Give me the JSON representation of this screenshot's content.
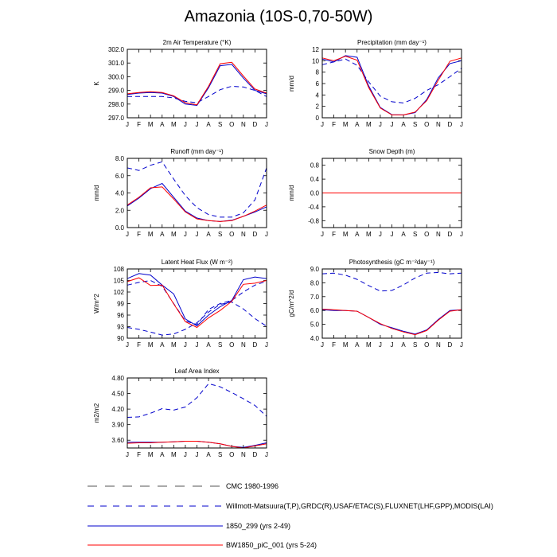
{
  "page": {
    "title": "Amazonia (10S-0,70-50W)"
  },
  "legend": {
    "items": [
      {
        "label": "CMC 1980-1996",
        "color": "#555555",
        "dash": "long"
      },
      {
        "label": "Willmott-Matsuura(T,P),GRDC(R),USAF/ETAC(S),FLUXNET(LHF,GPP),MODIS(LAI)",
        "color": "#0000cc",
        "dash": "medium"
      },
      {
        "label": "1850_299 (yrs 2-49)",
        "color": "#0000cc",
        "dash": "solid"
      },
      {
        "label": "BW1850_piC_001 (yrs 5-24)",
        "color": "#ff0000",
        "dash": "solid"
      }
    ]
  },
  "chart_data": [
    {
      "type": "line",
      "title": "2m Air Temperature (°K)",
      "ylabel": "K",
      "categories": [
        "J",
        "F",
        "M",
        "A",
        "M",
        "J",
        "J",
        "A",
        "S",
        "O",
        "N",
        "D",
        "J"
      ],
      "ylim": [
        297.0,
        302.0
      ],
      "yticks": [
        "297.0",
        "298.0",
        "299.0",
        "300.0",
        "301.0",
        "302.0"
      ],
      "series": [
        {
          "name": "Willmott-Matsuura(T,P),GRDC(R),USAF/ETAC(S),FLUXNET(LHF,GPP),MODIS(LAI)",
          "color": "#0000cc",
          "dash": "dashed",
          "values": [
            298.55,
            298.55,
            298.55,
            298.55,
            298.45,
            298.2,
            298.1,
            298.55,
            299.05,
            299.3,
            299.25,
            299.0,
            298.55
          ]
        },
        {
          "name": "1850_299 (yrs 2-49)",
          "color": "#0000cc",
          "dash": "solid",
          "values": [
            298.7,
            298.8,
            298.85,
            298.8,
            298.55,
            298.0,
            297.9,
            299.2,
            300.8,
            300.9,
            299.9,
            299.0,
            298.75
          ]
        },
        {
          "name": "BW1850_piC_001 (yrs 5-24)",
          "color": "#ff0000",
          "dash": "solid",
          "values": [
            298.75,
            298.85,
            298.9,
            298.85,
            298.6,
            298.1,
            297.95,
            299.3,
            300.95,
            301.05,
            300.05,
            299.1,
            298.8
          ]
        }
      ]
    },
    {
      "type": "line",
      "title": "Precipitation (mm day⁻¹)",
      "ylabel": "mm/d",
      "categories": [
        "J",
        "F",
        "M",
        "A",
        "M",
        "J",
        "J",
        "A",
        "S",
        "O",
        "N",
        "D",
        "J"
      ],
      "ylim": [
        0,
        12
      ],
      "yticks": [
        "0",
        "2",
        "4",
        "6",
        "8",
        "10",
        "12"
      ],
      "series": [
        {
          "name": "Willmott-Matsuura(T,P),GRDC(R),USAF/ETAC(S),FLUXNET(LHF,GPP),MODIS(LAI)",
          "color": "#0000cc",
          "dash": "dashed",
          "values": [
            9.3,
            9.8,
            10.3,
            9.2,
            6.3,
            3.8,
            2.8,
            2.6,
            3.4,
            4.8,
            5.8,
            7.2,
            8.7
          ]
        },
        {
          "name": "1850_299 (yrs 2-49)",
          "color": "#0000cc",
          "dash": "solid",
          "values": [
            10.3,
            9.8,
            10.9,
            10.6,
            5.6,
            1.8,
            0.55,
            0.5,
            0.9,
            3.2,
            7.0,
            9.5,
            10.0
          ]
        },
        {
          "name": "BW1850_piC_001 (yrs 5-24)",
          "color": "#ff0000",
          "dash": "solid",
          "values": [
            10.5,
            10.0,
            10.8,
            10.1,
            5.3,
            1.7,
            0.5,
            0.5,
            1.0,
            3.0,
            6.6,
            9.9,
            10.5
          ]
        }
      ]
    },
    {
      "type": "line",
      "title": "Runoff (mm day⁻¹)",
      "ylabel": "mm/d",
      "categories": [
        "J",
        "F",
        "M",
        "A",
        "M",
        "J",
        "J",
        "A",
        "S",
        "O",
        "N",
        "D",
        "J"
      ],
      "ylim": [
        0.0,
        8.0
      ],
      "yticks": [
        "0.0",
        "2.0",
        "4.0",
        "6.0",
        "8.0"
      ],
      "series": [
        {
          "name": "Willmott-Matsuura(T,P),GRDC(R),USAF/ETAC(S),FLUXNET(LHF,GPP),MODIS(LAI)",
          "color": "#0000cc",
          "dash": "dashed",
          "values": [
            6.9,
            6.6,
            7.2,
            7.6,
            5.6,
            3.7,
            2.3,
            1.5,
            1.2,
            1.2,
            1.7,
            3.2,
            6.9
          ]
        },
        {
          "name": "1850_299 (yrs 2-49)",
          "color": "#0000cc",
          "dash": "solid",
          "values": [
            2.5,
            3.4,
            4.5,
            5.1,
            3.5,
            1.9,
            1.1,
            0.8,
            0.7,
            0.85,
            1.3,
            1.8,
            2.4
          ]
        },
        {
          "name": "BW1850_piC_001 (yrs 5-24)",
          "color": "#ff0000",
          "dash": "solid",
          "values": [
            2.6,
            3.5,
            4.6,
            4.7,
            3.3,
            1.8,
            1.0,
            0.8,
            0.7,
            0.8,
            1.3,
            1.9,
            2.6
          ]
        }
      ]
    },
    {
      "type": "line",
      "title": "Snow Depth (m)",
      "ylabel": "mm/d",
      "categories": [
        "J",
        "F",
        "M",
        "A",
        "M",
        "J",
        "J",
        "A",
        "S",
        "O",
        "N",
        "D",
        "J"
      ],
      "ylim": [
        -1.0,
        1.0
      ],
      "yticks": [
        "-0.8",
        "-0.4",
        "0.0",
        "0.4",
        "0.8"
      ],
      "ytick_values": [
        -0.8,
        -0.4,
        0.0,
        0.4,
        0.8
      ],
      "series": [
        {
          "name": "Willmott-Matsuura(T,P),GRDC(R),USAF/ETAC(S),FLUXNET(LHF,GPP),MODIS(LAI)",
          "color": "#0000cc",
          "dash": "dashed",
          "values": [
            0,
            0,
            0,
            0,
            0,
            0,
            0,
            0,
            0,
            0,
            0,
            0,
            0
          ]
        },
        {
          "name": "1850_299 (yrs 2-49)",
          "color": "#0000cc",
          "dash": "solid",
          "values": [
            0,
            0,
            0,
            0,
            0,
            0,
            0,
            0,
            0,
            0,
            0,
            0,
            0
          ]
        },
        {
          "name": "BW1850_piC_001 (yrs 5-24)",
          "color": "#ff0000",
          "dash": "solid",
          "values": [
            0,
            0,
            0,
            0,
            0,
            0,
            0,
            0,
            0,
            0,
            0,
            0,
            0
          ]
        }
      ]
    },
    {
      "type": "line",
      "title": "Latent Heat Flux (W m⁻²)",
      "ylabel": "W/m^2",
      "categories": [
        "J",
        "F",
        "M",
        "A",
        "M",
        "J",
        "J",
        "A",
        "S",
        "O",
        "N",
        "D",
        "J"
      ],
      "ylim": [
        90,
        108
      ],
      "yticks": [
        "90",
        "93",
        "96",
        "99",
        "102",
        "105",
        "108"
      ],
      "series": [
        {
          "name": "CMC 1980-1996",
          "color": "#0000cc",
          "dash": "dashed",
          "values": [
            103.8,
            104.5,
            105.0,
            103.5,
            99.0,
            94.5,
            93.5,
            97.5,
            99.0,
            99.8,
            102.0,
            103.8,
            104.8
          ]
        },
        {
          "name": "Willmott-Matsuura(T,P),GRDC(R),USAF/ETAC(S),FLUXNET(LHF,GPP),MODIS(LAI)",
          "color": "#0000cc",
          "dash": "dashed",
          "values": [
            92.8,
            92.3,
            91.6,
            90.8,
            91.1,
            92.3,
            94.0,
            96.8,
            98.8,
            99.4,
            97.6,
            95.1,
            93.1
          ]
        },
        {
          "name": "1850_299 (yrs 2-49)",
          "color": "#0000cc",
          "dash": "solid",
          "values": [
            105.5,
            106.8,
            106.4,
            103.8,
            101.5,
            95.0,
            93.2,
            96.0,
            98.2,
            99.8,
            105.2,
            105.9,
            105.5
          ]
        },
        {
          "name": "BW1850_piC_001 (yrs 5-24)",
          "color": "#ff0000",
          "dash": "solid",
          "values": [
            104.7,
            105.7,
            103.7,
            103.8,
            98.9,
            94.3,
            92.8,
            95.3,
            97.2,
            99.6,
            104.0,
            104.3,
            105.0
          ]
        }
      ]
    },
    {
      "type": "line",
      "title": "Photosynthesis (gC m⁻²day⁻¹)",
      "ylabel": "gC/m^2/d",
      "categories": [
        "J",
        "F",
        "M",
        "A",
        "M",
        "J",
        "J",
        "A",
        "S",
        "O",
        "N",
        "D",
        "J"
      ],
      "ylim": [
        4.0,
        9.0
      ],
      "yticks": [
        "4.0",
        "5.0",
        "6.0",
        "7.0",
        "8.0",
        "9.0"
      ],
      "series": [
        {
          "name": "Willmott-Matsuura(T,P),GRDC(R),USAF/ETAC(S),FLUXNET(LHF,GPP),MODIS(LAI)",
          "color": "#0000cc",
          "dash": "dashed",
          "values": [
            8.65,
            8.7,
            8.55,
            8.25,
            7.8,
            7.4,
            7.45,
            7.85,
            8.35,
            8.7,
            8.75,
            8.65,
            8.7
          ]
        },
        {
          "name": "1850_299 (yrs 2-49)",
          "color": "#0000cc",
          "dash": "solid",
          "values": [
            6.05,
            6.0,
            6.0,
            5.95,
            5.5,
            5.0,
            4.75,
            4.5,
            4.3,
            4.6,
            5.35,
            6.0,
            6.05
          ]
        },
        {
          "name": "BW1850_piC_001 (yrs 5-24)",
          "color": "#ff0000",
          "dash": "solid",
          "values": [
            6.1,
            6.05,
            6.0,
            5.95,
            5.5,
            5.05,
            4.7,
            4.45,
            4.25,
            4.55,
            5.3,
            5.95,
            6.05
          ]
        }
      ]
    },
    {
      "type": "line",
      "title": "Leaf Area Index",
      "ylabel": "m2/m2",
      "categories": [
        "J",
        "F",
        "M",
        "A",
        "M",
        "J",
        "J",
        "A",
        "S",
        "O",
        "N",
        "D",
        "J"
      ],
      "ylim": [
        3.45,
        4.8
      ],
      "yticks": [
        "3.60",
        "3.90",
        "4.20",
        "4.50",
        "4.80"
      ],
      "ytick_values": [
        3.6,
        3.9,
        4.2,
        4.5,
        4.8
      ],
      "series": [
        {
          "name": "Willmott-Matsuura(T,P),GRDC(R),USAF/ETAC(S),FLUXNET(LHF,GPP),MODIS(LAI)",
          "color": "#0000cc",
          "dash": "dashed",
          "values": [
            4.04,
            4.05,
            4.12,
            4.21,
            4.18,
            4.24,
            4.42,
            4.69,
            4.63,
            4.52,
            4.4,
            4.27,
            4.06
          ]
        },
        {
          "name": "1850_299 (yrs 2-49)",
          "color": "#0000cc",
          "dash": "solid",
          "values": [
            3.56,
            3.56,
            3.56,
            3.56,
            3.57,
            3.58,
            3.58,
            3.56,
            3.53,
            3.48,
            3.46,
            3.5,
            3.55
          ]
        },
        {
          "name": "BW1850_piC_001 (yrs 5-24)",
          "color": "#ff0000",
          "dash": "solid",
          "values": [
            3.54,
            3.55,
            3.55,
            3.56,
            3.57,
            3.58,
            3.58,
            3.56,
            3.53,
            3.48,
            3.45,
            3.49,
            3.53
          ]
        }
      ]
    }
  ]
}
